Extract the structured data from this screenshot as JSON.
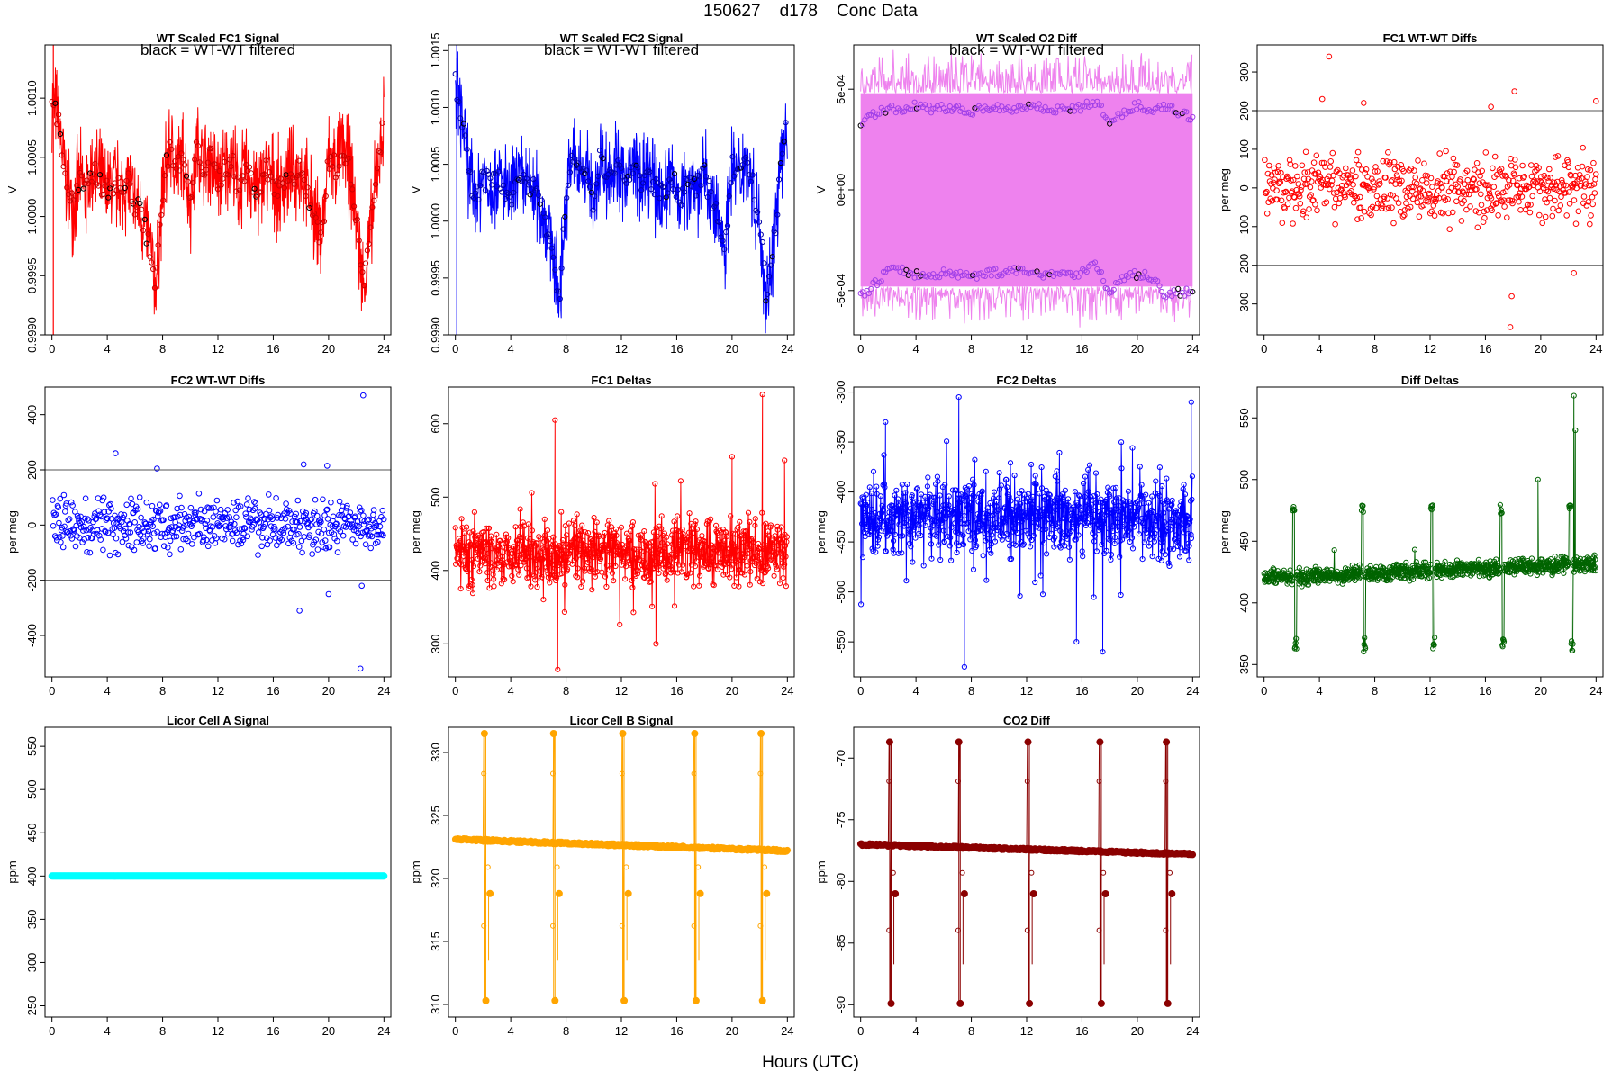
{
  "page": {
    "title": "150627    d178    Conc Data",
    "xlabel": "Hours (UTC)"
  },
  "chart_data": [
    {
      "id": "wt-fc1",
      "type": "line",
      "title": "WT Scaled FC1 Signal",
      "annotation": "black = WT-WT filtered",
      "ylabel": "V",
      "xlim": [
        -0.5,
        24.5
      ],
      "ylim": [
        0.999,
        1.00145
      ],
      "yticks": [
        0.999,
        0.9995,
        1.0,
        1.0005,
        1.001
      ],
      "ytick_labels": [
        "0.9990",
        "0.9995",
        "1.0000",
        "1.0005",
        "1.0010"
      ],
      "xticks": [
        0,
        4,
        8,
        12,
        16,
        20,
        24
      ],
      "grid": false,
      "color": "#ff0000",
      "series": [
        {
          "x": [
            0,
            0.5,
            1,
            1.5,
            2,
            2.5,
            3,
            3.5,
            4,
            4.5,
            5,
            5.5,
            6,
            6.5,
            7,
            7.5,
            8,
            8.5,
            9,
            9.5,
            10,
            10.5,
            11,
            11.5,
            12,
            12.5,
            13,
            13.5,
            14,
            14.5,
            15,
            15.5,
            16,
            16.5,
            17,
            17.5,
            18,
            18.5,
            19,
            19.5,
            20,
            20.5,
            21,
            21.5,
            22,
            22.5,
            23,
            23.5,
            24
          ],
          "y": [
            1.001,
            1.0008,
            1.0003,
            1.0001,
            1.0003,
            1.0002,
            1.0004,
            1.0003,
            1.0002,
            1.0003,
            1.0002,
            1.0003,
            1.0001,
            1.0,
            0.9998,
            0.9994,
            1.0002,
            1.0006,
            1.0004,
            1.0005,
            1.0001,
            1.0006,
            1.0004,
            1.0005,
            1.0003,
            1.0004,
            1.0005,
            1.0002,
            1.0004,
            1.0003,
            1.0002,
            1.0004,
            1.0003,
            1.0002,
            1.0004,
            1.0003,
            1.0004,
            1.0002,
            1.0,
            0.9998,
            1.0005,
            1.0004,
            1.0006,
            1.0004,
            1.0,
            0.9994,
            0.9998,
            1.0004,
            1.0008
          ]
        }
      ]
    },
    {
      "id": "wt-fc2",
      "type": "line",
      "title": "WT Scaled FC2 Signal",
      "annotation": "black = WT-WT filtered",
      "ylabel": "V",
      "xlim": [
        -0.5,
        24.5
      ],
      "ylim": [
        0.999,
        1.00155
      ],
      "yticks": [
        0.999,
        0.9995,
        1.0,
        1.0005,
        1.001,
        1.0015
      ],
      "ytick_labels": [
        "0.9990",
        "0.9995",
        "1.0000",
        "1.0005",
        "1.0010",
        "1.0015"
      ],
      "xticks": [
        0,
        4,
        8,
        12,
        16,
        20,
        24
      ],
      "grid": false,
      "color": "#0000ff",
      "series": [
        {
          "x": [
            0,
            0.5,
            1,
            1.5,
            2,
            2.5,
            3,
            3.5,
            4,
            4.5,
            5,
            5.5,
            6,
            6.5,
            7,
            7.5,
            8,
            8.5,
            9,
            9.5,
            10,
            10.5,
            11,
            11.5,
            12,
            12.5,
            13,
            13.5,
            14,
            14.5,
            15,
            15.5,
            16,
            16.5,
            17,
            17.5,
            18,
            18.5,
            19,
            19.5,
            20,
            20.5,
            21,
            21.5,
            22,
            22.5,
            23,
            23.5,
            24
          ],
          "y": [
            1.0012,
            1.0009,
            1.0004,
            1.0002,
            1.0004,
            1.0003,
            1.0004,
            1.0003,
            1.0002,
            1.0004,
            1.0003,
            1.0003,
            1.0002,
            1.0,
            0.9998,
            0.9993,
            1.0002,
            1.0006,
            1.0004,
            1.0005,
            1.0001,
            1.0006,
            1.0004,
            1.0005,
            1.0004,
            1.0004,
            1.0005,
            1.0003,
            1.0004,
            1.0003,
            1.0002,
            1.0004,
            1.0003,
            1.0002,
            1.0004,
            1.0003,
            1.0004,
            1.0002,
            1.0,
            0.9998,
            1.0005,
            1.0004,
            1.0006,
            1.0003,
            1.0,
            0.9993,
            0.9998,
            1.0004,
            1.0009
          ]
        }
      ]
    },
    {
      "id": "wt-o2",
      "type": "scatter",
      "title": "WT Scaled O2 Diff",
      "annotation": "black = WT-WT filtered",
      "ylabel": "V",
      "xlim": [
        -0.5,
        24.5
      ],
      "ylim": [
        -0.00072,
        0.00072
      ],
      "yticks": [
        -0.0005,
        0,
        0.0005
      ],
      "ytick_labels": [
        "-5e-04",
        "0e+00",
        "5e-04"
      ],
      "xticks": [
        0,
        4,
        8,
        12,
        16,
        20,
        24
      ],
      "grid": false,
      "color": "#a040e8",
      "band_color": "#ee82ee",
      "series": [
        {
          "name": "",
          "x": [
            0,
            1,
            2,
            3,
            4,
            5,
            6,
            7,
            8,
            9,
            10,
            11,
            12,
            13,
            14,
            15,
            16,
            17,
            18,
            19,
            20,
            21,
            22,
            23,
            24
          ],
          "y": [
            0.00032,
            0.00038,
            0.0004,
            0.0004,
            0.00042,
            0.0004,
            0.00041,
            0.0004,
            0.00039,
            0.00041,
            0.00041,
            0.0004,
            0.00042,
            0.00041,
            0.0004,
            0.0004,
            0.00041,
            0.00044,
            0.00034,
            0.00038,
            0.00042,
            0.0004,
            0.00042,
            0.00038,
            0.00036
          ]
        },
        {
          "name": "",
          "x": [
            0,
            1,
            2,
            3,
            4,
            5,
            6,
            7,
            8,
            9,
            10,
            11,
            12,
            13,
            14,
            15,
            16,
            17,
            18,
            19,
            20,
            21,
            22,
            23,
            24
          ],
          "y": [
            -0.00053,
            -0.00047,
            -0.0004,
            -0.0004,
            -0.00042,
            -0.00043,
            -0.00041,
            -0.00042,
            -0.00043,
            -0.00041,
            -0.00041,
            -0.0004,
            -0.00041,
            -0.00042,
            -0.00041,
            -0.00042,
            -0.00041,
            -0.00036,
            -0.00052,
            -0.00043,
            -0.00042,
            -0.00043,
            -0.00052,
            -0.00051,
            -0.00051
          ]
        }
      ]
    },
    {
      "id": "fc1-wt-diffs",
      "type": "scatter",
      "title": "FC1 WT-WT Diffs",
      "ylabel": "per meg",
      "xlim": [
        -0.5,
        24.5
      ],
      "ylim": [
        -380,
        370
      ],
      "yticks": [
        -300,
        -200,
        -100,
        0,
        100,
        200,
        300
      ],
      "ytick_labels": [
        "-300",
        "-200",
        "-100",
        "0",
        "100",
        "200",
        "300"
      ],
      "xticks": [
        0,
        4,
        8,
        12,
        16,
        20,
        24
      ],
      "grid": false,
      "hlines": [
        200,
        -200
      ],
      "color": "#ff0000",
      "series": [
        {
          "spread": 60,
          "outliers": [
            [
              4.7,
              340
            ],
            [
              4.2,
              230
            ],
            [
              7.2,
              220
            ],
            [
              18.1,
              250
            ],
            [
              16.4,
              210
            ],
            [
              17.9,
              -280
            ],
            [
              17.8,
              -360
            ],
            [
              22.4,
              -220
            ],
            [
              24,
              225
            ]
          ]
        }
      ]
    },
    {
      "id": "fc2-wt-diffs",
      "type": "scatter",
      "title": "FC2 WT-WT Diffs",
      "ylabel": "per meg",
      "xlim": [
        -0.5,
        24.5
      ],
      "ylim": [
        -550,
        500
      ],
      "yticks": [
        -400,
        -200,
        0,
        200,
        400
      ],
      "ytick_labels": [
        "-400",
        "-200",
        "0",
        "200",
        "400"
      ],
      "xticks": [
        0,
        4,
        8,
        12,
        16,
        20,
        24
      ],
      "grid": false,
      "hlines": [
        200,
        -200
      ],
      "color": "#0000ff",
      "series": [
        {
          "spread": 70,
          "outliers": [
            [
              22.5,
              470
            ],
            [
              4.6,
              260
            ],
            [
              7.6,
              205
            ],
            [
              18.2,
              220
            ],
            [
              19.9,
              215
            ],
            [
              17.9,
              -310
            ],
            [
              22.3,
              -520
            ],
            [
              22.4,
              -220
            ],
            [
              20,
              -250
            ]
          ]
        }
      ]
    },
    {
      "id": "fc1-deltas",
      "type": "line",
      "title": "FC1 Deltas",
      "ylabel": "per meg",
      "xlim": [
        -0.5,
        24.5
      ],
      "ylim": [
        255,
        650
      ],
      "yticks": [
        300,
        400,
        500,
        600
      ],
      "ytick_labels": [
        "300",
        "400",
        "500",
        "600"
      ],
      "xticks": [
        0,
        4,
        8,
        12,
        16,
        20,
        24
      ],
      "grid": false,
      "color": "#ff0000",
      "series": [
        {
          "base": 425,
          "spread": 40,
          "spikes": [
            [
              7.2,
              605
            ],
            [
              22.2,
              640
            ],
            [
              7.4,
              265
            ],
            [
              20,
              555
            ],
            [
              23.8,
              550
            ],
            [
              14.5,
              300
            ]
          ]
        }
      ]
    },
    {
      "id": "fc2-deltas",
      "type": "line",
      "title": "FC2 Deltas",
      "ylabel": "per meg",
      "xlim": [
        -0.5,
        24.5
      ],
      "ylim": [
        -585,
        -295
      ],
      "yticks": [
        -550,
        -500,
        -450,
        -400,
        -350,
        -300
      ],
      "ytick_labels": [
        "-550",
        "-500",
        "-450",
        "-400",
        "-350",
        "-300"
      ],
      "xticks": [
        0,
        4,
        8,
        12,
        16,
        20,
        24
      ],
      "grid": false,
      "color": "#0000ff",
      "series": [
        {
          "base": -425,
          "spread": 35,
          "spikes": [
            [
              7.1,
              -305
            ],
            [
              23.9,
              -310
            ],
            [
              7.5,
              -575
            ],
            [
              15.6,
              -550
            ],
            [
              17.5,
              -560
            ],
            [
              1.8,
              -330
            ]
          ]
        }
      ]
    },
    {
      "id": "diff-deltas",
      "type": "line",
      "title": "Diff Deltas",
      "ylabel": "per meg",
      "xlim": [
        -0.5,
        24.5
      ],
      "ylim": [
        340,
        575
      ],
      "yticks": [
        350,
        400,
        450,
        500,
        550
      ],
      "ytick_labels": [
        "350",
        "400",
        "450",
        "500",
        "550"
      ],
      "xticks": [
        0,
        4,
        8,
        12,
        16,
        20,
        24
      ],
      "grid": false,
      "color": "#006400",
      "series": [
        {
          "base": 420,
          "end": 432,
          "spread": 6,
          "events": [
            2.2,
            7.2,
            12.2,
            17.2,
            22.2
          ],
          "event_high": 480,
          "event_low": 360,
          "spikes": [
            [
              22.4,
              568
            ],
            [
              19.8,
              500
            ],
            [
              22.5,
              540
            ]
          ]
        }
      ]
    },
    {
      "id": "licor-a",
      "type": "line",
      "title": "Licor Cell A Signal",
      "ylabel": "ppm",
      "xlim": [
        -0.5,
        24.5
      ],
      "ylim": [
        237,
        572
      ],
      "yticks": [
        250,
        300,
        350,
        400,
        450,
        500,
        550
      ],
      "ytick_labels": [
        "250",
        "300",
        "350",
        "400",
        "450",
        "500",
        "550"
      ],
      "xticks": [
        0,
        4,
        8,
        12,
        16,
        20,
        24
      ],
      "grid": false,
      "color": "#00ffff",
      "series": [
        {
          "start": 400,
          "end": 400
        }
      ]
    },
    {
      "id": "licor-b",
      "type": "line",
      "title": "Licor Cell B Signal",
      "ylabel": "ppm",
      "xlim": [
        -0.5,
        24.5
      ],
      "ylim": [
        309,
        332
      ],
      "yticks": [
        310,
        315,
        320,
        325,
        330
      ],
      "ytick_labels": [
        "310",
        "315",
        "320",
        "325",
        "330"
      ],
      "xticks": [
        0,
        4,
        8,
        12,
        16,
        20,
        24
      ],
      "grid": false,
      "color": "#ffa500",
      "series": [
        {
          "start": 323.1,
          "end": 322.2,
          "events": [
            2.1,
            7.1,
            12.1,
            17.3,
            22.1
          ],
          "event_high": 331.5,
          "event_low": 310.3,
          "event_mid": 318.8
        }
      ]
    },
    {
      "id": "co2-diff",
      "type": "line",
      "title": "CO2 Diff",
      "ylabel": "ppm",
      "xlim": [
        -0.5,
        24.5
      ],
      "ylim": [
        -91,
        -67.5
      ],
      "yticks": [
        -90,
        -85,
        -80,
        -75,
        -70
      ],
      "ytick_labels": [
        "-90",
        "-85",
        "-80",
        "-75",
        "-70"
      ],
      "xticks": [
        0,
        4,
        8,
        12,
        16,
        20,
        24
      ],
      "grid": false,
      "color": "#8b0000",
      "series": [
        {
          "start": -77.0,
          "end": -77.8,
          "events": [
            2.1,
            7.1,
            12.1,
            17.3,
            22.1
          ],
          "event_high": -68.7,
          "event_low": -89.9,
          "event_mid": -81
        }
      ]
    }
  ]
}
